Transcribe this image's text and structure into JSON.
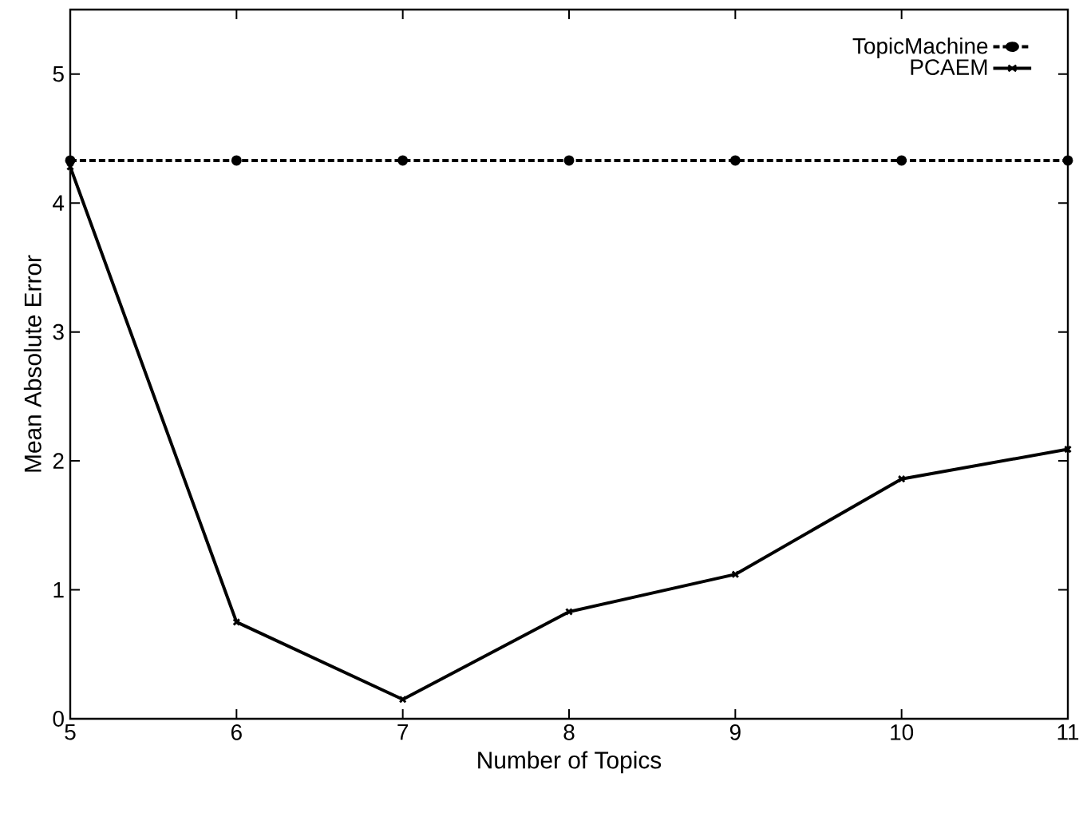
{
  "chart_data": {
    "type": "line",
    "xlabel": "Number of Topics",
    "ylabel": "Mean Absolute Error",
    "x": [
      5,
      6,
      7,
      8,
      9,
      10,
      11
    ],
    "series": [
      {
        "name": "TopicMachine",
        "color": "#000000",
        "marker": "circle",
        "line_style": "dashed",
        "values": [
          4.33,
          4.33,
          4.33,
          4.33,
          4.33,
          4.33,
          4.33
        ]
      },
      {
        "name": "PCAEM",
        "color": "#000000",
        "marker": "cross",
        "line_style": "solid",
        "values": [
          4.28,
          0.75,
          0.15,
          0.83,
          1.12,
          1.86,
          2.09
        ]
      }
    ],
    "xlim": [
      5,
      11
    ],
    "ylim": [
      0,
      5.5
    ],
    "xticks": [
      5,
      6,
      7,
      8,
      9,
      10,
      11
    ],
    "yticks": [
      0,
      1,
      2,
      3,
      4,
      5
    ],
    "grid": false,
    "legend": "top right"
  }
}
